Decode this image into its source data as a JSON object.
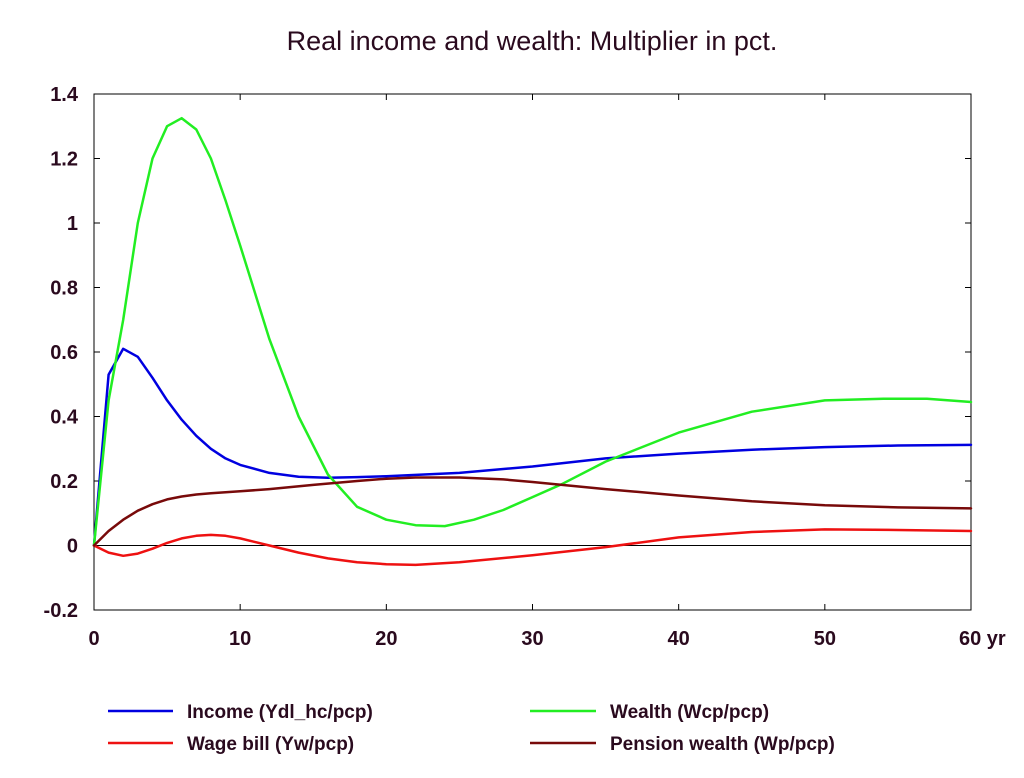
{
  "chart_data": {
    "type": "line",
    "title": "Real income and wealth: Multiplier in pct.",
    "xlabel": "",
    "ylabel": "",
    "xlim": [
      0,
      60
    ],
    "ylim": [
      -0.2,
      1.4
    ],
    "x_ticks": [
      0,
      10,
      20,
      30,
      40,
      50,
      60
    ],
    "x_tick_labels": [
      "0",
      "10",
      "20",
      "30",
      "40",
      "50",
      "60 yr"
    ],
    "y_ticks": [
      -0.2,
      0,
      0.2,
      0.4,
      0.6,
      0.8,
      1,
      1.2,
      1.4
    ],
    "y_tick_labels": [
      "-0.2",
      "0",
      "0.2",
      "0.4",
      "0.6",
      "0.8",
      "1",
      "1.2",
      "1.4"
    ],
    "grid": false,
    "zero_line": true,
    "legend_position": "bottom",
    "series": [
      {
        "name": "Income (Ydl_hc/pcp)",
        "color": "#0000e0",
        "x": [
          0,
          1,
          2,
          3,
          4,
          5,
          6,
          7,
          8,
          9,
          10,
          12,
          14,
          16,
          18,
          20,
          25,
          30,
          35,
          40,
          45,
          50,
          55,
          60
        ],
        "y": [
          0,
          0.53,
          0.61,
          0.585,
          0.52,
          0.45,
          0.39,
          0.34,
          0.3,
          0.27,
          0.25,
          0.225,
          0.213,
          0.21,
          0.212,
          0.215,
          0.225,
          0.245,
          0.27,
          0.285,
          0.297,
          0.305,
          0.31,
          0.312
        ]
      },
      {
        "name": "Wealth (Wcp/pcp)",
        "color": "#22ee22",
        "x": [
          0,
          1,
          2,
          3,
          4,
          5,
          6,
          7,
          8,
          9,
          10,
          12,
          14,
          16,
          18,
          20,
          22,
          24,
          26,
          28,
          30,
          32,
          35,
          40,
          45,
          50,
          54,
          57,
          60
        ],
        "y": [
          0,
          0.45,
          0.7,
          1.0,
          1.2,
          1.3,
          1.325,
          1.29,
          1.2,
          1.07,
          0.93,
          0.64,
          0.4,
          0.22,
          0.12,
          0.08,
          0.063,
          0.06,
          0.08,
          0.11,
          0.15,
          0.19,
          0.26,
          0.35,
          0.415,
          0.45,
          0.455,
          0.455,
          0.445
        ]
      },
      {
        "name": "Wage bill (Yw/pcp)",
        "color": "#ee1111",
        "x": [
          0,
          1,
          2,
          3,
          4,
          5,
          6,
          7,
          8,
          9,
          10,
          12,
          14,
          16,
          18,
          20,
          22,
          25,
          30,
          35,
          40,
          45,
          50,
          55,
          60
        ],
        "y": [
          0,
          -0.022,
          -0.032,
          -0.025,
          -0.01,
          0.008,
          0.022,
          0.03,
          0.033,
          0.03,
          0.022,
          0.0,
          -0.022,
          -0.04,
          -0.052,
          -0.058,
          -0.06,
          -0.052,
          -0.03,
          -0.005,
          0.025,
          0.042,
          0.05,
          0.048,
          0.045
        ]
      },
      {
        "name": "Pension wealth (Wp/pcp)",
        "color": "#780a0a",
        "x": [
          0,
          1,
          2,
          3,
          4,
          5,
          6,
          7,
          8,
          10,
          12,
          15,
          18,
          20,
          22,
          25,
          28,
          30,
          35,
          40,
          45,
          50,
          55,
          60
        ],
        "y": [
          0,
          0.045,
          0.08,
          0.108,
          0.128,
          0.143,
          0.152,
          0.158,
          0.162,
          0.168,
          0.175,
          0.188,
          0.2,
          0.207,
          0.211,
          0.211,
          0.205,
          0.197,
          0.175,
          0.155,
          0.137,
          0.125,
          0.118,
          0.115
        ]
      }
    ]
  }
}
